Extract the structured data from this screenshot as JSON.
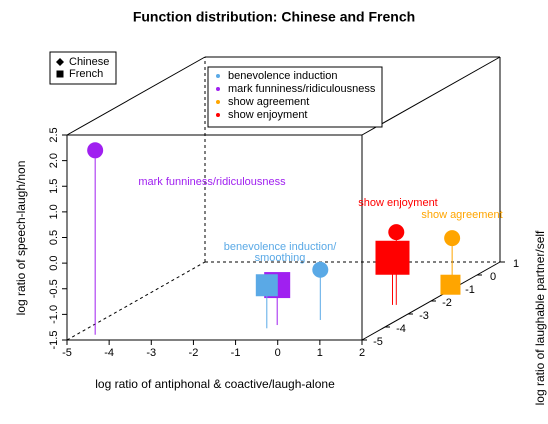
{
  "chart_data": {
    "type": "scatter3d",
    "title": "Function distribution: Chinese and French",
    "xlabel": "log ratio of antiphonal & coactive/laugh-alone",
    "zlabel": "log ratio of speech-laugh/non",
    "ylabel": "log ratio of laughable partner/self",
    "xlim": [
      -5,
      2
    ],
    "xticks": [
      -5,
      -4,
      -3,
      -2,
      -1,
      0,
      1,
      2
    ],
    "ylim": [
      -5,
      1
    ],
    "yticks": [
      -5,
      -4,
      -3,
      -2,
      -1,
      0,
      1
    ],
    "zlim": [
      -1.5,
      2.5
    ],
    "zticks": [
      -1.5,
      {
        "value": -1,
        "label": "-1.0"
      },
      -0.5,
      {
        "value": 0,
        "label": "0.0"
      },
      0.5,
      {
        "value": 1,
        "label": "1.0"
      },
      1.5,
      {
        "value": 2,
        "label": "2.0"
      },
      2.5
    ],
    "functions": [
      {
        "name": "benevolence induction",
        "color": "#5aa9e6"
      },
      {
        "name": "mark funniness/ridiculousness",
        "color": "#a020f0"
      },
      {
        "name": "show agreement",
        "color": "#ffa500"
      },
      {
        "name": "show enjoyment",
        "color": "#ff0000"
      }
    ],
    "series": [
      {
        "name": "Chinese",
        "x": [
          0.17,
          -4.55,
          1.41,
          1.34
        ],
        "y": [
          -3.46,
          -4.6,
          0,
          -2.3
        ],
        "z": [
          -0.52,
          2.1,
          -0.78,
          -0.08
        ]
      },
      {
        "name": "French",
        "x": [
          -0.75,
          -0.64,
          2.08,
          1.25
        ],
        "y": [
          -4.1,
          -3.85,
          -1.3,
          -2.3
        ],
        "z": [
          -0.66,
          -0.72,
          -1.36,
          -0.58
        ]
      }
    ],
    "annotations": [
      {
        "lines": [
          "mark funniness/ridiculousness"
        ],
        "color": "#a020f0"
      },
      {
        "lines": [
          "benevolence induction/",
          "smoothing"
        ],
        "color": "#5aa9e6"
      },
      {
        "lines": [
          "show enjoyment"
        ],
        "color": "#ff0000"
      },
      {
        "lines": [
          "show agreement"
        ],
        "color": "#ffa500"
      }
    ]
  }
}
